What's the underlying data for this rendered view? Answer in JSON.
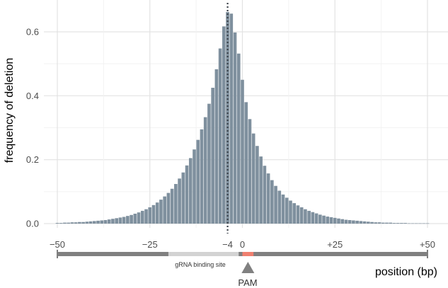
{
  "chart_data": {
    "type": "bar",
    "title": "",
    "xlabel": "position (bp)",
    "ylabel": "frequency of deletion",
    "xlim": [
      -50,
      50
    ],
    "ylim": [
      0,
      0.66
    ],
    "x_ticks": [
      -50,
      -25,
      -4,
      0,
      25,
      50
    ],
    "x_tick_labels": [
      "−50",
      "−25",
      "−4",
      "0",
      "+25",
      "+50"
    ],
    "y_ticks": [
      0,
      0.2,
      0.4,
      0.6
    ],
    "y_tick_labels": [
      "0.0",
      "0.2",
      "0.4",
      "0.6"
    ],
    "grid": true,
    "cut_site_line": -4,
    "bar_color": "#7f909e",
    "x": [
      -50,
      -49,
      -48,
      -47,
      -46,
      -45,
      -44,
      -43,
      -42,
      -41,
      -40,
      -39,
      -38,
      -37,
      -36,
      -35,
      -34,
      -33,
      -32,
      -31,
      -30,
      -29,
      -28,
      -27,
      -26,
      -25,
      -24,
      -23,
      -22,
      -21,
      -20,
      -19,
      -18,
      -17,
      -16,
      -15,
      -14,
      -13,
      -12,
      -11,
      -10,
      -9,
      -8,
      -7,
      -6,
      -5,
      -4,
      -3,
      -2,
      -1,
      0,
      1,
      2,
      3,
      4,
      5,
      6,
      7,
      8,
      9,
      10,
      11,
      12,
      13,
      14,
      15,
      16,
      17,
      18,
      19,
      20,
      21,
      22,
      23,
      24,
      25,
      26,
      27,
      28,
      29,
      30,
      31,
      32,
      33,
      34,
      35,
      36,
      37,
      38,
      39,
      40,
      41,
      42,
      43,
      44,
      45,
      46,
      47,
      48,
      49,
      50
    ],
    "values": [
      0.002,
      0.002,
      0.003,
      0.003,
      0.004,
      0.004,
      0.005,
      0.005,
      0.006,
      0.007,
      0.008,
      0.009,
      0.01,
      0.011,
      0.013,
      0.015,
      0.017,
      0.019,
      0.021,
      0.024,
      0.027,
      0.031,
      0.035,
      0.04,
      0.045,
      0.051,
      0.058,
      0.066,
      0.075,
      0.085,
      0.096,
      0.109,
      0.124,
      0.141,
      0.16,
      0.182,
      0.205,
      0.232,
      0.262,
      0.295,
      0.333,
      0.375,
      0.425,
      0.483,
      0.548,
      0.617,
      0.662,
      0.657,
      0.598,
      0.532,
      0.45,
      0.38,
      0.327,
      0.282,
      0.243,
      0.21,
      0.181,
      0.157,
      0.136,
      0.118,
      0.103,
      0.091,
      0.081,
      0.072,
      0.064,
      0.057,
      0.051,
      0.045,
      0.04,
      0.036,
      0.032,
      0.028,
      0.025,
      0.022,
      0.02,
      0.018,
      0.016,
      0.014,
      0.012,
      0.011,
      0.01,
      0.009,
      0.008,
      0.007,
      0.006,
      0.005,
      0.004,
      0.004,
      0.003,
      0.003,
      0.003,
      0.002,
      0.002,
      0.002,
      0.002,
      0.001,
      0.001,
      0.001,
      0.001,
      0.001,
      0.001
    ]
  },
  "annotation": {
    "grna_label": "gRNA binding site",
    "pam_label": "PAM",
    "grna_range": [
      -20,
      -1
    ],
    "pam_range": [
      0,
      3
    ],
    "track_color": "#808080",
    "grna_color": "#d3d3d3",
    "pam_color": "#f08070"
  }
}
